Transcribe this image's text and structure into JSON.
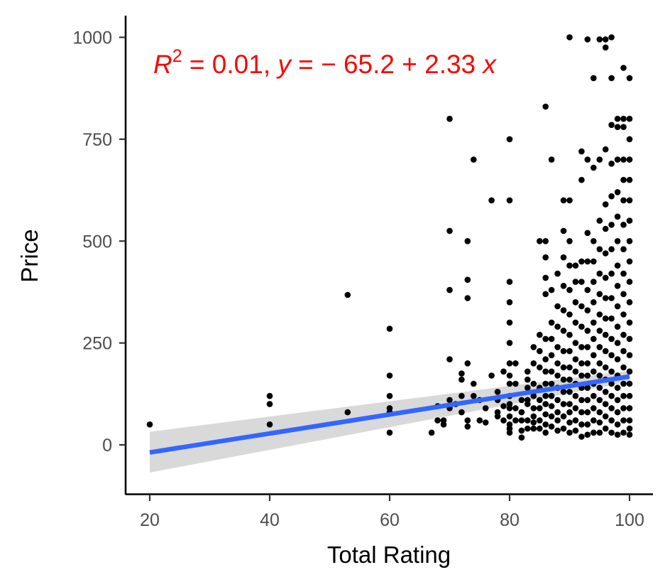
{
  "chart_data": {
    "type": "scatter",
    "xlabel": "Total Rating",
    "ylabel": "Price",
    "xlim": [
      16,
      104
    ],
    "ylim": [
      -130,
      1050
    ],
    "xticks": [
      "20",
      "40",
      "60",
      "80",
      "100"
    ],
    "yticks": [
      "0",
      "250",
      "500",
      "750",
      "1000"
    ],
    "grid": false,
    "legend": "none",
    "annotation": {
      "r_symbol": "R",
      "r_exponent": "2",
      "r2_text": " = 0.01, ",
      "y_symbol": "y",
      "eq_text": " = − 65.2 + 2.33 ",
      "x_symbol": "x",
      "color": "#ff0000"
    },
    "regression": {
      "intercept": -65.2,
      "slope": 2.33,
      "x_range": [
        20,
        100
      ],
      "color": "#3366ff",
      "band_color": "#d9d9d9",
      "band_low_start": -68,
      "band_high_start": 32,
      "band_low_end": 155,
      "band_high_end": 182
    },
    "points": [
      [
        20,
        50
      ],
      [
        40,
        120
      ],
      [
        40,
        100
      ],
      [
        40,
        50
      ],
      [
        53,
        368
      ],
      [
        53,
        80
      ],
      [
        60,
        285
      ],
      [
        60,
        170
      ],
      [
        60,
        120
      ],
      [
        60,
        90
      ],
      [
        60,
        80
      ],
      [
        60,
        30
      ],
      [
        67,
        30
      ],
      [
        68,
        60
      ],
      [
        68,
        95
      ],
      [
        69,
        50
      ],
      [
        69,
        60
      ],
      [
        70,
        800
      ],
      [
        70,
        525
      ],
      [
        70,
        380
      ],
      [
        70,
        210
      ],
      [
        70,
        110
      ],
      [
        70,
        90
      ],
      [
        71,
        100
      ],
      [
        72,
        175
      ],
      [
        72,
        160
      ],
      [
        72,
        120
      ],
      [
        72,
        80
      ],
      [
        73,
        500
      ],
      [
        73,
        405
      ],
      [
        73,
        360
      ],
      [
        73,
        200
      ],
      [
        73,
        60
      ],
      [
        73,
        45
      ],
      [
        74,
        700
      ],
      [
        74,
        150
      ],
      [
        74,
        120
      ],
      [
        75,
        110
      ],
      [
        75,
        60
      ],
      [
        76,
        90
      ],
      [
        76,
        55
      ],
      [
        77,
        600
      ],
      [
        77,
        170
      ],
      [
        78,
        130
      ],
      [
        78,
        80
      ],
      [
        78,
        110
      ],
      [
        78,
        70
      ],
      [
        79,
        180
      ],
      [
        79,
        95
      ],
      [
        79,
        60
      ],
      [
        80,
        750
      ],
      [
        80,
        600
      ],
      [
        80,
        400
      ],
      [
        80,
        350
      ],
      [
        80,
        300
      ],
      [
        80,
        250
      ],
      [
        80,
        200
      ],
      [
        80,
        170
      ],
      [
        80,
        150
      ],
      [
        80,
        120
      ],
      [
        80,
        100
      ],
      [
        80,
        90
      ],
      [
        80,
        70
      ],
      [
        80,
        50
      ],
      [
        80,
        40
      ],
      [
        80,
        30
      ],
      [
        81,
        200
      ],
      [
        81,
        150
      ],
      [
        81,
        90
      ],
      [
        81,
        60
      ],
      [
        82,
        110
      ],
      [
        82,
        80
      ],
      [
        82,
        60
      ],
      [
        82,
        35
      ],
      [
        82,
        18
      ],
      [
        83,
        180
      ],
      [
        83,
        160
      ],
      [
        83,
        140
      ],
      [
        83,
        110
      ],
      [
        83,
        100
      ],
      [
        83,
        60
      ],
      [
        83,
        40
      ],
      [
        84,
        240
      ],
      [
        84,
        200
      ],
      [
        84,
        150
      ],
      [
        84,
        120
      ],
      [
        84,
        90
      ],
      [
        84,
        70
      ],
      [
        84,
        55
      ],
      [
        84,
        40
      ],
      [
        85,
        500
      ],
      [
        85,
        270
      ],
      [
        85,
        230
      ],
      [
        85,
        190
      ],
      [
        85,
        140
      ],
      [
        85,
        110
      ],
      [
        85,
        90
      ],
      [
        85,
        60
      ],
      [
        85,
        40
      ],
      [
        86,
        830
      ],
      [
        86,
        500
      ],
      [
        86,
        460
      ],
      [
        86,
        410
      ],
      [
        86,
        370
      ],
      [
        86,
        260
      ],
      [
        86,
        210
      ],
      [
        86,
        180
      ],
      [
        86,
        150
      ],
      [
        86,
        120
      ],
      [
        86,
        100
      ],
      [
        86,
        75
      ],
      [
        86,
        50
      ],
      [
        86,
        30
      ],
      [
        87,
        700
      ],
      [
        87,
        380
      ],
      [
        87,
        300
      ],
      [
        87,
        260
      ],
      [
        87,
        220
      ],
      [
        87,
        180
      ],
      [
        87,
        150
      ],
      [
        87,
        120
      ],
      [
        87,
        95
      ],
      [
        87,
        70
      ],
      [
        87,
        45
      ],
      [
        88,
        420
      ],
      [
        88,
        340
      ],
      [
        88,
        290
      ],
      [
        88,
        240
      ],
      [
        88,
        200
      ],
      [
        88,
        170
      ],
      [
        88,
        140
      ],
      [
        88,
        110
      ],
      [
        88,
        80
      ],
      [
        88,
        60
      ],
      [
        88,
        35
      ],
      [
        89,
        600
      ],
      [
        89,
        525
      ],
      [
        89,
        460
      ],
      [
        89,
        390
      ],
      [
        89,
        330
      ],
      [
        89,
        280
      ],
      [
        89,
        230
      ],
      [
        89,
        190
      ],
      [
        89,
        160
      ],
      [
        89,
        130
      ],
      [
        89,
        100
      ],
      [
        89,
        70
      ],
      [
        89,
        40
      ],
      [
        90,
        1000
      ],
      [
        90,
        600
      ],
      [
        90,
        500
      ],
      [
        90,
        440
      ],
      [
        90,
        380
      ],
      [
        90,
        320
      ],
      [
        90,
        270
      ],
      [
        90,
        230
      ],
      [
        90,
        190
      ],
      [
        90,
        160
      ],
      [
        90,
        130
      ],
      [
        90,
        100
      ],
      [
        90,
        80
      ],
      [
        90,
        55
      ],
      [
        90,
        30
      ],
      [
        91,
        440
      ],
      [
        91,
        400
      ],
      [
        91,
        350
      ],
      [
        91,
        300
      ],
      [
        91,
        250
      ],
      [
        91,
        210
      ],
      [
        91,
        180
      ],
      [
        91,
        150
      ],
      [
        91,
        120
      ],
      [
        91,
        90
      ],
      [
        91,
        60
      ],
      [
        91,
        35
      ],
      [
        92,
        720
      ],
      [
        92,
        650
      ],
      [
        92,
        450
      ],
      [
        92,
        400
      ],
      [
        92,
        340
      ],
      [
        92,
        290
      ],
      [
        92,
        240
      ],
      [
        92,
        200
      ],
      [
        92,
        170
      ],
      [
        92,
        140
      ],
      [
        92,
        110
      ],
      [
        92,
        80
      ],
      [
        92,
        50
      ],
      [
        92,
        20
      ],
      [
        93,
        995
      ],
      [
        93,
        700
      ],
      [
        93,
        520
      ],
      [
        93,
        450
      ],
      [
        93,
        380
      ],
      [
        93,
        330
      ],
      [
        93,
        280
      ],
      [
        93,
        240
      ],
      [
        93,
        200
      ],
      [
        93,
        170
      ],
      [
        93,
        140
      ],
      [
        93,
        110
      ],
      [
        93,
        80
      ],
      [
        93,
        50
      ],
      [
        93,
        25
      ],
      [
        94,
        900
      ],
      [
        94,
        680
      ],
      [
        94,
        500
      ],
      [
        94,
        450
      ],
      [
        94,
        400
      ],
      [
        94,
        350
      ],
      [
        94,
        300
      ],
      [
        94,
        260
      ],
      [
        94,
        220
      ],
      [
        94,
        180
      ],
      [
        94,
        150
      ],
      [
        94,
        120
      ],
      [
        94,
        90
      ],
      [
        94,
        60
      ],
      [
        94,
        30
      ],
      [
        95,
        995
      ],
      [
        95,
        700
      ],
      [
        95,
        550
      ],
      [
        95,
        480
      ],
      [
        95,
        420
      ],
      [
        95,
        370
      ],
      [
        95,
        320
      ],
      [
        95,
        280
      ],
      [
        95,
        240
      ],
      [
        95,
        200
      ],
      [
        95,
        170
      ],
      [
        95,
        140
      ],
      [
        95,
        110
      ],
      [
        95,
        80
      ],
      [
        95,
        55
      ],
      [
        95,
        30
      ],
      [
        96,
        995
      ],
      [
        96,
        975
      ],
      [
        96,
        725
      ],
      [
        96,
        590
      ],
      [
        96,
        530
      ],
      [
        96,
        470
      ],
      [
        96,
        410
      ],
      [
        96,
        360
      ],
      [
        96,
        310
      ],
      [
        96,
        270
      ],
      [
        96,
        230
      ],
      [
        96,
        190
      ],
      [
        96,
        160
      ],
      [
        96,
        130
      ],
      [
        96,
        100
      ],
      [
        96,
        70
      ],
      [
        96,
        40
      ],
      [
        97,
        1000
      ],
      [
        97,
        900
      ],
      [
        97,
        785
      ],
      [
        97,
        690
      ],
      [
        97,
        610
      ],
      [
        97,
        540
      ],
      [
        97,
        480
      ],
      [
        97,
        420
      ],
      [
        97,
        360
      ],
      [
        97,
        310
      ],
      [
        97,
        260
      ],
      [
        97,
        220
      ],
      [
        97,
        180
      ],
      [
        97,
        150
      ],
      [
        97,
        120
      ],
      [
        97,
        90
      ],
      [
        97,
        60
      ],
      [
        97,
        30
      ],
      [
        98,
        800
      ],
      [
        98,
        780
      ],
      [
        98,
        700
      ],
      [
        98,
        620
      ],
      [
        98,
        560
      ],
      [
        98,
        500
      ],
      [
        98,
        440
      ],
      [
        98,
        390
      ],
      [
        98,
        340
      ],
      [
        98,
        290
      ],
      [
        98,
        250
      ],
      [
        98,
        210
      ],
      [
        98,
        170
      ],
      [
        98,
        140
      ],
      [
        98,
        110
      ],
      [
        98,
        80
      ],
      [
        98,
        50
      ],
      [
        98,
        25
      ],
      [
        99,
        925
      ],
      [
        99,
        800
      ],
      [
        99,
        780
      ],
      [
        99,
        700
      ],
      [
        99,
        650
      ],
      [
        99,
        600
      ],
      [
        99,
        540
      ],
      [
        99,
        480
      ],
      [
        99,
        420
      ],
      [
        99,
        370
      ],
      [
        99,
        320
      ],
      [
        99,
        270
      ],
      [
        99,
        230
      ],
      [
        99,
        190
      ],
      [
        99,
        150
      ],
      [
        99,
        120
      ],
      [
        99,
        90
      ],
      [
        99,
        60
      ],
      [
        99,
        30
      ],
      [
        100,
        900
      ],
      [
        100,
        800
      ],
      [
        100,
        750
      ],
      [
        100,
        700
      ],
      [
        100,
        650
      ],
      [
        100,
        600
      ],
      [
        100,
        550
      ],
      [
        100,
        500
      ],
      [
        100,
        450
      ],
      [
        100,
        400
      ],
      [
        100,
        350
      ],
      [
        100,
        300
      ],
      [
        100,
        260
      ],
      [
        100,
        220
      ],
      [
        100,
        180
      ],
      [
        100,
        150
      ],
      [
        100,
        120
      ],
      [
        100,
        90
      ],
      [
        100,
        60
      ],
      [
        100,
        40
      ],
      [
        100,
        25
      ]
    ]
  }
}
